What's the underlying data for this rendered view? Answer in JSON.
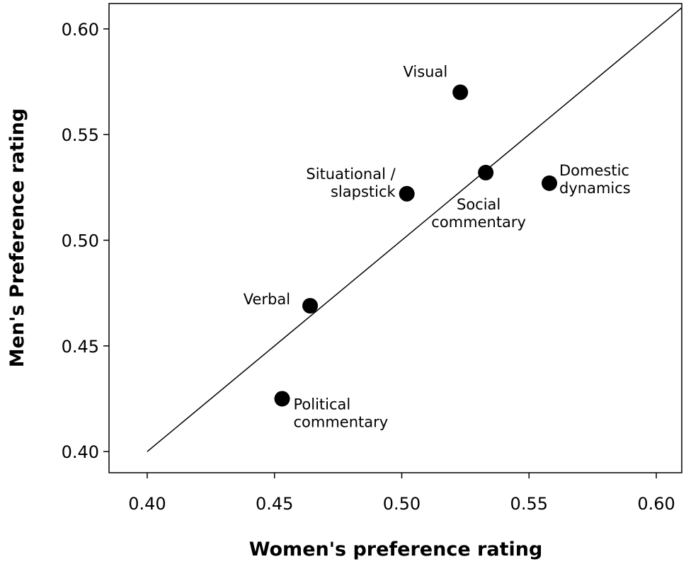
{
  "chart_data": {
    "type": "scatter",
    "title": "",
    "xlabel": "Women's preference rating",
    "ylabel": "Men's Preference rating",
    "xlim": [
      0.385,
      0.61
    ],
    "ylim": [
      0.39,
      0.612
    ],
    "xticks": [
      "0.40",
      "0.45",
      "0.50",
      "0.55",
      "0.60"
    ],
    "yticks": [
      "0.40",
      "0.45",
      "0.50",
      "0.55",
      "0.60"
    ],
    "grid": false,
    "reference_line": "y = x",
    "points": [
      {
        "label": [
          "Visual"
        ],
        "x": 0.523,
        "y": 0.57
      },
      {
        "label": [
          "Situational /",
          "slapstick"
        ],
        "x": 0.502,
        "y": 0.522
      },
      {
        "label": [
          "Social",
          "commentary"
        ],
        "x": 0.533,
        "y": 0.532
      },
      {
        "label": [
          "Domestic",
          "dynamics"
        ],
        "x": 0.558,
        "y": 0.527
      },
      {
        "label": [
          "Verbal"
        ],
        "x": 0.464,
        "y": 0.469
      },
      {
        "label": [
          "Political",
          "commentary"
        ],
        "x": 0.453,
        "y": 0.425
      }
    ]
  }
}
